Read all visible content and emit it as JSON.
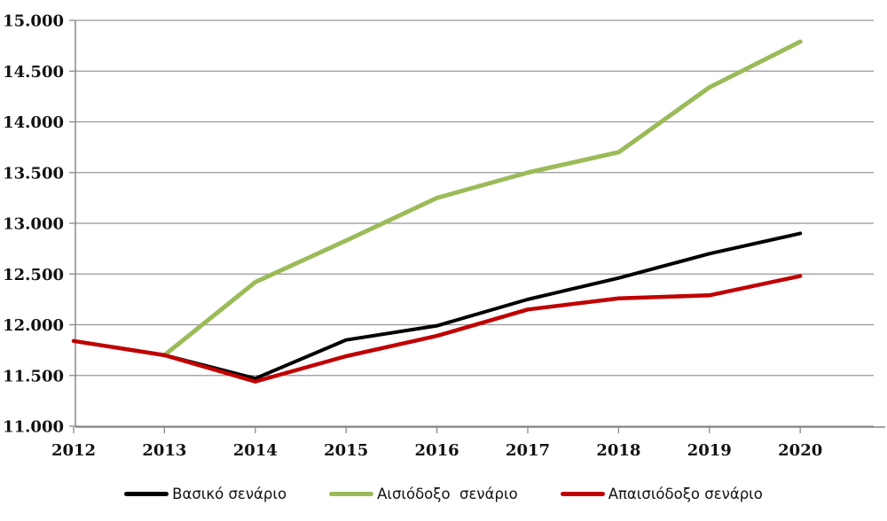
{
  "chart_data": {
    "type": "line",
    "title": "",
    "xlabel": "",
    "ylabel": "",
    "grid": true,
    "legend_position": "bottom",
    "categories": [
      "2012",
      "2013",
      "2014",
      "2015",
      "2016",
      "2017",
      "2018",
      "2019",
      "2020"
    ],
    "series": [
      {
        "name": "Βασικό σενάριο",
        "color": "#000000",
        "line_width": 4,
        "values": [
          11840,
          11700,
          11470,
          11850,
          11990,
          12250,
          12460,
          12700,
          12900
        ]
      },
      {
        "name": "Αισιόδοξο  σενάριο",
        "color": "#9BBB59",
        "line_width": 5,
        "values": [
          null,
          11700,
          12420,
          12830,
          13250,
          13500,
          13700,
          14340,
          14790
        ]
      },
      {
        "name": "Απαισιόδοξο σενάριο",
        "color": "#C00000",
        "line_width": 4.5,
        "values": [
          11840,
          11700,
          11440,
          11690,
          11890,
          12150,
          12260,
          12290,
          12480
        ]
      }
    ],
    "ylim": [
      11000,
      15000
    ],
    "y_tick_step": 500,
    "y_ticks": [
      {
        "value": 11000,
        "label": "11.000"
      },
      {
        "value": 11500,
        "label": "11.500"
      },
      {
        "value": 12000,
        "label": "12.000"
      },
      {
        "value": 12500,
        "label": "12.500"
      },
      {
        "value": 13000,
        "label": "13.000"
      },
      {
        "value": 13500,
        "label": "13.500"
      },
      {
        "value": 14000,
        "label": "14.000"
      },
      {
        "value": 14500,
        "label": "14.500"
      },
      {
        "value": 15000,
        "label": "15.000"
      }
    ],
    "colors": {
      "gridline": "#969696",
      "axis": "#808080",
      "tick": "#808080",
      "label_text": "#111111",
      "background": "#ffffff"
    }
  }
}
